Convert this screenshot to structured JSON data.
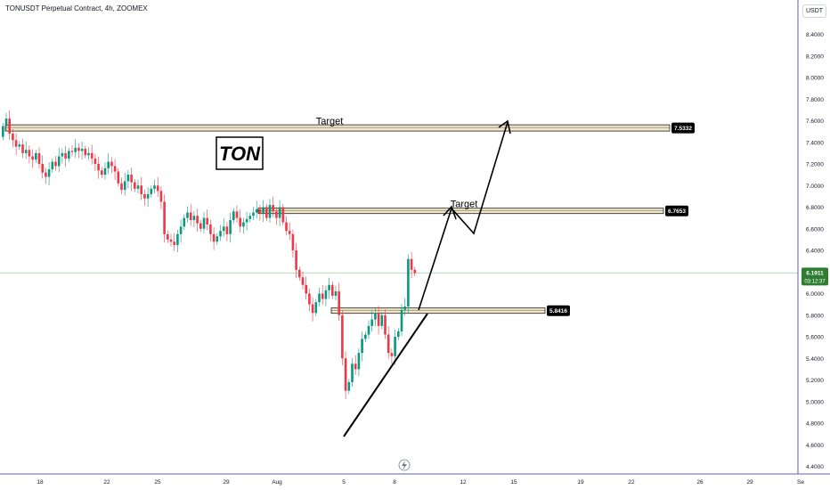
{
  "header": {
    "title": "TONUSDT Perpetual Contract, 4h, ZOOMEX",
    "currency": "USDT"
  },
  "colors": {
    "up": "#26a69a",
    "down": "#ef5350",
    "up_candle": "#089981",
    "down_candle": "#f23645",
    "zone_fill": "#f3e7c9",
    "zone_stroke": "#1e1e1e",
    "axis_line": "#5b5fc7",
    "price_line": "#a5d6a7",
    "label_bg": "#000000",
    "last_price_bg": "#2e7d32"
  },
  "icons": {
    "lightning": "lightning-icon"
  },
  "chart_data": {
    "type": "candlestick",
    "title": "TONUSDT Perpetual Contract, 4h, ZOOMEX",
    "annotation_label": "TON",
    "ylim": [
      4.35,
      8.65
    ],
    "y_ticks": [
      "8.4000",
      "8.2000",
      "8.0000",
      "7.8000",
      "7.6000",
      "7.4000",
      "7.2000",
      "7.0000",
      "6.8000",
      "6.6000",
      "6.4000",
      "6.2000",
      "6.0000",
      "5.8000",
      "5.6000",
      "5.4000",
      "5.2000",
      "5.0000",
      "4.8000",
      "4.6000",
      "4.4000"
    ],
    "x_ticks": [
      "18",
      "22",
      "25",
      "29",
      "Aug",
      "5",
      "8",
      "12",
      "15",
      "19",
      "22",
      "26",
      "29",
      "Se"
    ],
    "last_price": "6.1911",
    "countdown": "03:12:37",
    "levels": [
      {
        "price": 7.5332,
        "label": "7.5332",
        "annotation": "Target"
      },
      {
        "price": 6.7653,
        "label": "6.7653",
        "annotation": "Target"
      },
      {
        "price": 5.8416,
        "label": "5.8416",
        "annotation": ""
      }
    ],
    "candle_closes": [
      7.55,
      7.62,
      7.48,
      7.42,
      7.36,
      7.38,
      7.3,
      7.33,
      7.27,
      7.24,
      7.3,
      7.2,
      7.12,
      7.08,
      7.15,
      7.22,
      7.18,
      7.27,
      7.3,
      7.25,
      7.32,
      7.31,
      7.35,
      7.32,
      7.34,
      7.28,
      7.3,
      7.25,
      7.2,
      7.14,
      7.1,
      7.16,
      7.22,
      7.18,
      7.13,
      7.02,
      6.96,
      7.04,
      7.1,
      7.03,
      6.97,
      7.0,
      6.92,
      6.88,
      6.92,
      6.97,
      7.0,
      6.95,
      6.85,
      6.55,
      6.5,
      6.48,
      6.45,
      6.55,
      6.62,
      6.7,
      6.75,
      6.68,
      6.72,
      6.65,
      6.6,
      6.7,
      6.64,
      6.55,
      6.48,
      6.53,
      6.58,
      6.62,
      6.55,
      6.68,
      6.76,
      6.7,
      6.62,
      6.66,
      6.69,
      6.72,
      6.75,
      6.78,
      6.74,
      6.8,
      6.7,
      6.82,
      6.76,
      6.7,
      6.8,
      6.66,
      6.58,
      6.55,
      6.4,
      6.22,
      6.15,
      6.08,
      6.0,
      5.9,
      5.82,
      5.92,
      6.0,
      5.95,
      6.03,
      6.08,
      5.98,
      6.02,
      5.8,
      5.4,
      5.1,
      5.18,
      5.35,
      5.3,
      5.45,
      5.58,
      5.62,
      5.7,
      5.76,
      5.82,
      5.7,
      5.8,
      5.62,
      5.45,
      5.42,
      5.6,
      5.65,
      5.85,
      5.88,
      6.32,
      6.22,
      6.19
    ]
  }
}
